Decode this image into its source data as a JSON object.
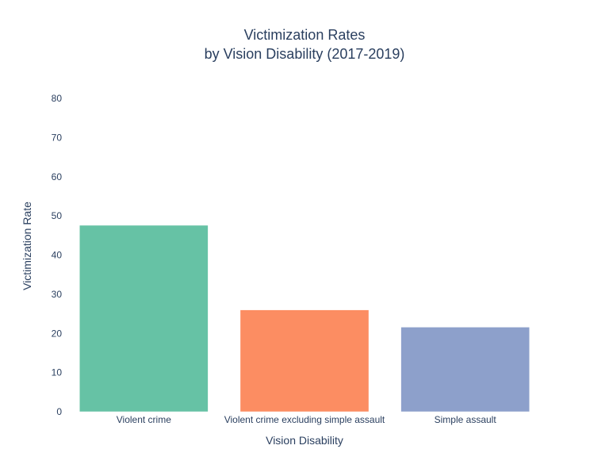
{
  "chart_data": {
    "type": "bar",
    "title": "Victimization Rates",
    "subtitle": "by Vision Disability (2017-2019)",
    "xlabel": "Vision Disability",
    "ylabel": "Victimization Rate",
    "categories": [
      "Violent crime",
      "Violent crime excluding simple assault",
      "Simple assault"
    ],
    "values": [
      47.6,
      26.0,
      21.6
    ],
    "colors": [
      "#66c2a5",
      "#fc8d62",
      "#8da0cb"
    ],
    "ylim": [
      0,
      80
    ],
    "yticks": [
      "0",
      "10",
      "20",
      "30",
      "40",
      "50",
      "60",
      "70",
      "80"
    ],
    "grid": false,
    "legend": "none"
  }
}
